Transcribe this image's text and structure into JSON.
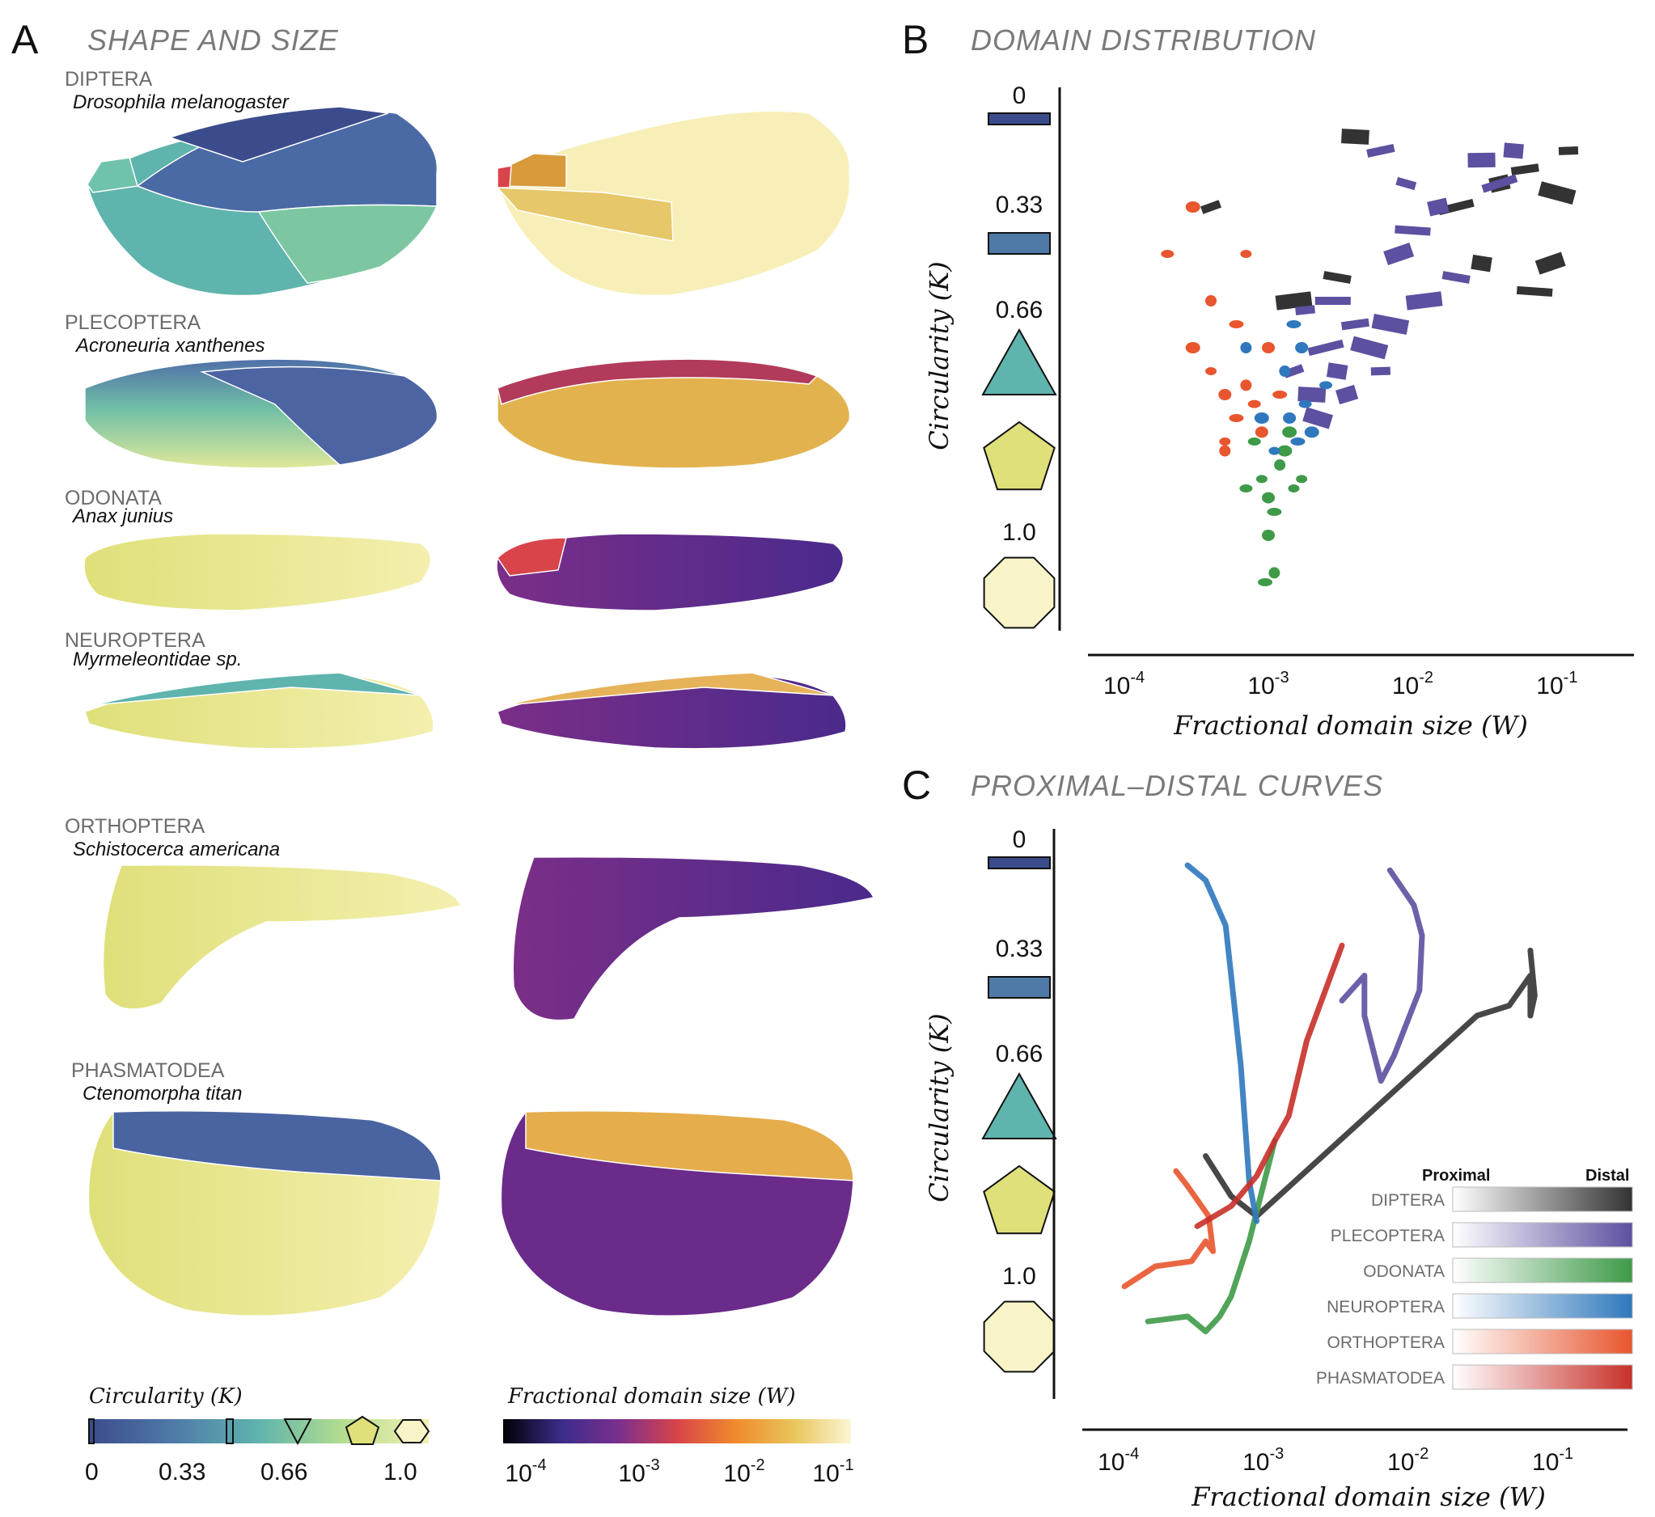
{
  "panel_a": {
    "letter": "A",
    "title": "SHAPE AND SIZE",
    "orders": [
      {
        "name": "DIPTERA",
        "species": "Drosophila melanogaster"
      },
      {
        "name": "PLECOPTERA",
        "species": "Acroneuria xanthenes"
      },
      {
        "name": "ODONATA",
        "species": "Anax junius"
      },
      {
        "name": "NEUROPTERA",
        "species": "Myrmeleontidae sp."
      },
      {
        "name": "ORTHOPTERA",
        "species": "Schistocerca americana"
      },
      {
        "name": "PHASMATODEA",
        "species": "Ctenomorpha titan"
      }
    ],
    "circularity_colorbar": {
      "title": "Circularity (K)",
      "ticks": [
        "0",
        "0.33",
        "0.66",
        "1.0"
      ],
      "colors": [
        "#3b4c8c",
        "#4f7aa8",
        "#5fb4ad",
        "#b5dd8e",
        "#f2f0b4"
      ]
    },
    "size_colorbar": {
      "title": "Fractional domain size (W)",
      "ticks": [
        {
          "base": "10",
          "exp": "-4"
        },
        {
          "base": "10",
          "exp": "-3"
        },
        {
          "base": "10",
          "exp": "-2"
        },
        {
          "base": "10",
          "exp": "-1"
        }
      ],
      "colors": [
        "#000004",
        "#3b2c8a",
        "#7a2f8e",
        "#d8444a",
        "#f08a2c",
        "#e9c45a",
        "#fbf6d4"
      ]
    }
  },
  "legend_shapes": {
    "labels": [
      "0",
      "0.33",
      "0.66",
      "1.0"
    ],
    "colors": {
      "k0": "#3b4c8c",
      "k033": "#4f7aa8",
      "k066": "#5fb4ad",
      "k083": "#dfe07a",
      "k1": "#f8f4c8"
    }
  },
  "panel_b": {
    "letter": "B",
    "title": "DOMAIN DISTRIBUTION"
  },
  "panel_c": {
    "letter": "C",
    "title": "PROXIMAL–DISTAL CURVES"
  },
  "legend": {
    "proximal_label": "Proximal",
    "distal_label": "Distal",
    "entries": [
      {
        "name": "DIPTERA",
        "color": "#333333"
      },
      {
        "name": "PLECOPTERA",
        "color": "#5c50a0"
      },
      {
        "name": "ODONATA",
        "color": "#3e9a48"
      },
      {
        "name": "NEUROPTERA",
        "color": "#2f78bd"
      },
      {
        "name": "ORTHOPTERA",
        "color": "#e8552e"
      },
      {
        "name": "PHASMATODEA",
        "color": "#c8302a"
      }
    ]
  },
  "chart_data": [
    {
      "type": "scatter",
      "title": "DOMAIN DISTRIBUTION",
      "xlabel": "Fractional domain size (W)",
      "ylabel": "Circularity (K)",
      "x_scale": "log",
      "xlim": [
        6e-05,
        0.3
      ],
      "ylim": [
        0,
        1
      ],
      "xticks": [
        {
          "base": "10",
          "exp": "-4"
        },
        {
          "base": "10",
          "exp": "-3"
        },
        {
          "base": "10",
          "exp": "-2"
        },
        {
          "base": "10",
          "exp": "-1"
        }
      ],
      "series": [
        {
          "name": "DIPTERA",
          "color": "#333333",
          "points": [
            [
              0.0004,
              0.2
            ],
            [
              0.004,
              0.05
            ],
            [
              0.02,
              0.2
            ],
            [
              0.03,
              0.32
            ],
            [
              0.06,
              0.12
            ],
            [
              0.1,
              0.17
            ],
            [
              0.12,
              0.08
            ],
            [
              0.09,
              0.32
            ],
            [
              0.07,
              0.38
            ],
            [
              0.04,
              0.15
            ],
            [
              0.003,
              0.35
            ],
            [
              0.0015,
              0.4
            ]
          ]
        },
        {
          "name": "PLECOPTERA",
          "color": "#5c50a0",
          "points": [
            [
              0.0015,
              0.55
            ],
            [
              0.002,
              0.6
            ],
            [
              0.0025,
              0.5
            ],
            [
              0.003,
              0.55
            ],
            [
              0.004,
              0.45
            ],
            [
              0.005,
              0.5
            ],
            [
              0.006,
              0.55
            ],
            [
              0.008,
              0.3
            ],
            [
              0.01,
              0.25
            ],
            [
              0.015,
              0.2
            ],
            [
              0.02,
              0.35
            ],
            [
              0.012,
              0.4
            ],
            [
              0.009,
              0.15
            ],
            [
              0.03,
              0.1
            ],
            [
              0.04,
              0.15
            ],
            [
              0.05,
              0.08
            ],
            [
              0.006,
              0.08
            ],
            [
              0.007,
              0.45
            ],
            [
              0.0018,
              0.42
            ],
            [
              0.0022,
              0.65
            ],
            [
              0.0028,
              0.4
            ],
            [
              0.0035,
              0.6
            ]
          ]
        },
        {
          "name": "ODONATA",
          "color": "#3e9a48",
          "points": [
            [
              0.0009,
              0.78
            ],
            [
              0.001,
              0.82
            ],
            [
              0.0011,
              0.85
            ],
            [
              0.0012,
              0.75
            ],
            [
              0.0008,
              0.7
            ],
            [
              0.0013,
              0.72
            ],
            [
              0.0015,
              0.8
            ],
            [
              0.001,
              0.9
            ],
            [
              0.00095,
              1.0
            ],
            [
              0.0011,
              0.98
            ],
            [
              0.0007,
              0.8
            ],
            [
              0.0014,
              0.68
            ],
            [
              0.0017,
              0.78
            ]
          ]
        },
        {
          "name": "NEUROPTERA",
          "color": "#2f78bd",
          "points": [
            [
              0.0012,
              0.6
            ],
            [
              0.0014,
              0.65
            ],
            [
              0.0016,
              0.7
            ],
            [
              0.0013,
              0.55
            ],
            [
              0.0018,
              0.62
            ],
            [
              0.002,
              0.68
            ],
            [
              0.0011,
              0.72
            ],
            [
              0.0017,
              0.5
            ],
            [
              0.0015,
              0.45
            ],
            [
              0.0007,
              0.5
            ],
            [
              0.0025,
              0.58
            ],
            [
              0.0009,
              0.65
            ]
          ]
        },
        {
          "name": "ORTHOPTERA",
          "color": "#e8552e",
          "points": [
            [
              0.0004,
              0.55
            ],
            [
              0.0005,
              0.6
            ],
            [
              0.0006,
              0.65
            ],
            [
              0.0007,
              0.58
            ],
            [
              0.0008,
              0.62
            ],
            [
              0.0003,
              0.5
            ],
            [
              0.0005,
              0.7
            ],
            [
              0.0009,
              0.68
            ],
            [
              0.0006,
              0.45
            ],
            [
              0.0004,
              0.4
            ],
            [
              0.0002,
              0.3
            ],
            [
              0.0003,
              0.2
            ],
            [
              0.0007,
              0.3
            ],
            [
              0.001,
              0.5
            ],
            [
              0.0012,
              0.6
            ],
            [
              0.0005,
              0.72
            ]
          ]
        }
      ]
    },
    {
      "type": "line",
      "title": "PROXIMAL–DISTAL CURVES",
      "xlabel": "Fractional domain size (W)",
      "ylabel": "Circularity (K)",
      "x_scale": "log",
      "xlim": [
        6e-05,
        0.3
      ],
      "ylim": [
        0,
        1
      ],
      "xticks": [
        {
          "base": "10",
          "exp": "-4"
        },
        {
          "base": "10",
          "exp": "-3"
        },
        {
          "base": "10",
          "exp": "-2"
        },
        {
          "base": "10",
          "exp": "-1"
        }
      ],
      "series": [
        {
          "name": "DIPTERA",
          "color": "#333333",
          "points": [
            [
              0.0004,
              0.58
            ],
            [
              0.0006,
              0.66
            ],
            [
              0.0009,
              0.7
            ],
            [
              0.03,
              0.3
            ],
            [
              0.05,
              0.28
            ],
            [
              0.07,
              0.22
            ],
            [
              0.07,
              0.3
            ],
            [
              0.075,
              0.26
            ],
            [
              0.07,
              0.17
            ]
          ]
        },
        {
          "name": "PLECOPTERA",
          "color": "#5c50a0",
          "points": [
            [
              0.0035,
              0.27
            ],
            [
              0.005,
              0.22
            ],
            [
              0.005,
              0.3
            ],
            [
              0.0065,
              0.43
            ],
            [
              0.008,
              0.38
            ],
            [
              0.012,
              0.25
            ],
            [
              0.0125,
              0.14
            ],
            [
              0.011,
              0.08
            ],
            [
              0.0075,
              0.01
            ]
          ]
        },
        {
          "name": "ODONATA",
          "color": "#3e9a48",
          "points": [
            [
              0.00016,
              0.91
            ],
            [
              0.0003,
              0.9
            ],
            [
              0.0004,
              0.93
            ],
            [
              0.0005,
              0.9
            ],
            [
              0.0006,
              0.86
            ],
            [
              0.0008,
              0.75
            ],
            [
              0.0012,
              0.55
            ]
          ]
        },
        {
          "name": "NEUROPTERA",
          "color": "#2f78bd",
          "points": [
            [
              0.0009,
              0.71
            ],
            [
              0.0008,
              0.63
            ],
            [
              0.0007,
              0.4
            ],
            [
              0.0006,
              0.22
            ],
            [
              0.00055,
              0.12
            ],
            [
              0.0004,
              0.03
            ],
            [
              0.0003,
              0.0
            ]
          ]
        },
        {
          "name": "ORTHOPTERA",
          "color": "#e8552e",
          "points": [
            [
              0.00011,
              0.84
            ],
            [
              0.00018,
              0.8
            ],
            [
              0.00032,
              0.79
            ],
            [
              0.0004,
              0.75
            ],
            [
              0.00045,
              0.77
            ],
            [
              0.00042,
              0.7
            ],
            [
              0.0003,
              0.64
            ],
            [
              0.00025,
              0.61
            ]
          ]
        },
        {
          "name": "PHASMATODEA",
          "color": "#c8302a",
          "points": [
            [
              0.00035,
              0.72
            ],
            [
              0.0006,
              0.68
            ],
            [
              0.0009,
              0.62
            ],
            [
              0.0012,
              0.55
            ],
            [
              0.0015,
              0.5
            ],
            [
              0.002,
              0.35
            ],
            [
              0.0035,
              0.16
            ]
          ]
        }
      ]
    }
  ]
}
